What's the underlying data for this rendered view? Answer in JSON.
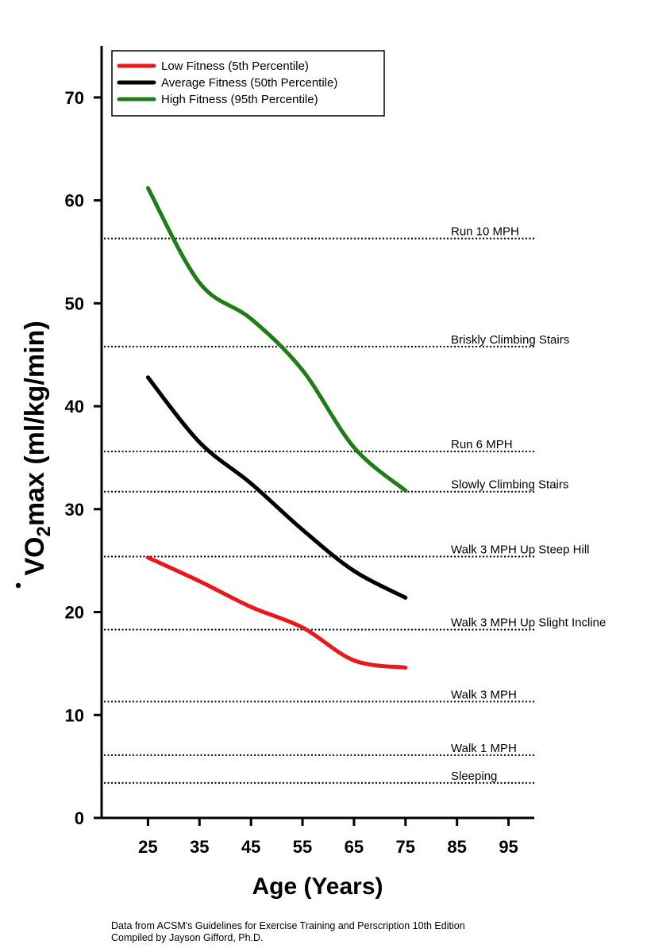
{
  "chart_data": {
    "type": "line",
    "xlabel": "Age (Years)",
    "ylabel": "VO2max (ml/kg/min)",
    "ylabel_parts": {
      "dot_v": "V",
      "main": "O",
      "sub": "2",
      "rest": "max (ml/kg/min)"
    },
    "xlim": [
      16,
      100
    ],
    "ylim": [
      0,
      75
    ],
    "x_ticks": [
      25,
      35,
      45,
      55,
      65,
      75,
      85,
      95
    ],
    "y_ticks": [
      0,
      10,
      20,
      30,
      40,
      50,
      60,
      70
    ],
    "legend_position": "top-left",
    "series": [
      {
        "name": "Low Fitness (5th Percentile)",
        "color": "#e8191b",
        "x": [
          25,
          35,
          45,
          55,
          65,
          75
        ],
        "y": [
          25.3,
          23.0,
          20.5,
          18.5,
          15.3,
          14.6
        ]
      },
      {
        "name": "Average Fitness (50th Percentile)",
        "color": "#000000",
        "x": [
          25,
          35,
          45,
          55,
          65,
          75
        ],
        "y": [
          42.8,
          36.5,
          32.5,
          28.0,
          24.0,
          21.4
        ]
      },
      {
        "name": "High Fitness (95th Percentile)",
        "color": "#1e7d16",
        "x": [
          25,
          35,
          45,
          55,
          65,
          75
        ],
        "y": [
          61.2,
          52.0,
          48.5,
          43.5,
          36.0,
          31.8
        ]
      }
    ],
    "reference_lines": [
      {
        "label": "Run 10 MPH",
        "y": 56.3
      },
      {
        "label": "Briskly Climbing Stairs",
        "y": 45.8
      },
      {
        "label": "Run 6 MPH",
        "y": 35.6
      },
      {
        "label": "Slowly Climbing Stairs",
        "y": 31.7
      },
      {
        "label": "Walk 3 MPH Up Steep Hill",
        "y": 25.4
      },
      {
        "label": "Walk 3 MPH Up Slight Incline",
        "y": 18.3
      },
      {
        "label": "Walk 3 MPH",
        "y": 11.3
      },
      {
        "label": "Walk 1 MPH",
        "y": 6.1
      },
      {
        "label": "Sleeping",
        "y": 3.4
      }
    ]
  },
  "footer": {
    "line1": "Data from ACSM's Guidelines for Exercise Training and Perscription 10th Edition",
    "line2": "Compiled by Jayson Gifford, Ph.D."
  }
}
